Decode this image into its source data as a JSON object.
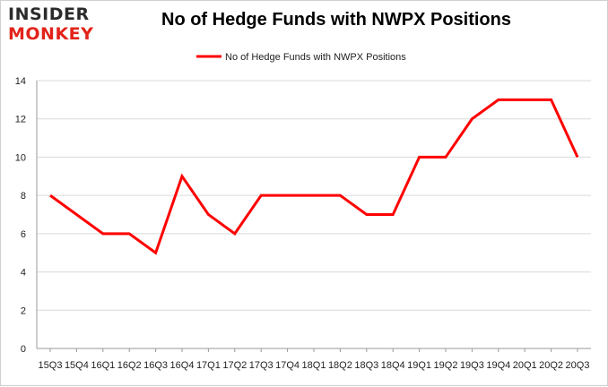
{
  "logo": {
    "line1": "INSIDER",
    "line2": "MONKEY"
  },
  "colors": {
    "series": "#ff0000",
    "grid": "#d9d9d9",
    "axis": "#999999",
    "logo_red": "#e2231a"
  },
  "chart_data": {
    "type": "line",
    "title": "No of Hedge Funds with NWPX Positions",
    "xlabel": "",
    "ylabel": "",
    "ylim": [
      0,
      14
    ],
    "yticks": [
      0,
      2,
      4,
      6,
      8,
      10,
      12,
      14
    ],
    "grid": true,
    "legend": "top-center",
    "categories": [
      "15Q3",
      "15Q4",
      "16Q1",
      "16Q2",
      "16Q3",
      "16Q4",
      "17Q1",
      "17Q2",
      "17Q3",
      "17Q4",
      "18Q1",
      "18Q2",
      "18Q3",
      "18Q4",
      "19Q1",
      "19Q2",
      "19Q3",
      "19Q4",
      "20Q1",
      "20Q2",
      "20Q3"
    ],
    "series": [
      {
        "name": "No of Hedge Funds with NWPX Positions",
        "values": [
          8,
          7,
          6,
          6,
          5,
          9,
          7,
          6,
          8,
          8,
          8,
          8,
          7,
          7,
          10,
          10,
          12,
          13,
          13,
          13,
          10
        ]
      }
    ]
  }
}
